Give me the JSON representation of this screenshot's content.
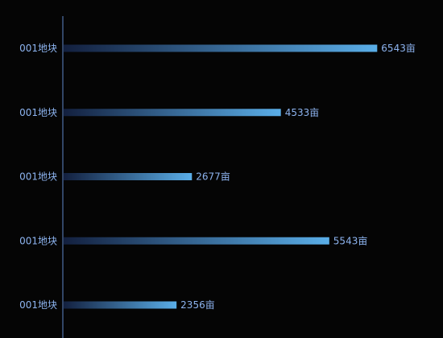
{
  "chart_data": {
    "type": "bar",
    "orientation": "horizontal",
    "categories": [
      "001地块",
      "001地块",
      "001地块",
      "001地块",
      "001地块"
    ],
    "values": [
      6543,
      4533,
      2677,
      5543,
      2356
    ],
    "value_suffix": "亩",
    "xlim": [
      0,
      7000
    ],
    "grid": false,
    "legend": "none",
    "title": "",
    "xlabel": "",
    "ylabel": ""
  },
  "colors": {
    "background": "#050505",
    "axis": "#5f86c8",
    "label": "#8db4f0",
    "bar_start": "#13203f",
    "bar_end": "#5aaee8"
  }
}
